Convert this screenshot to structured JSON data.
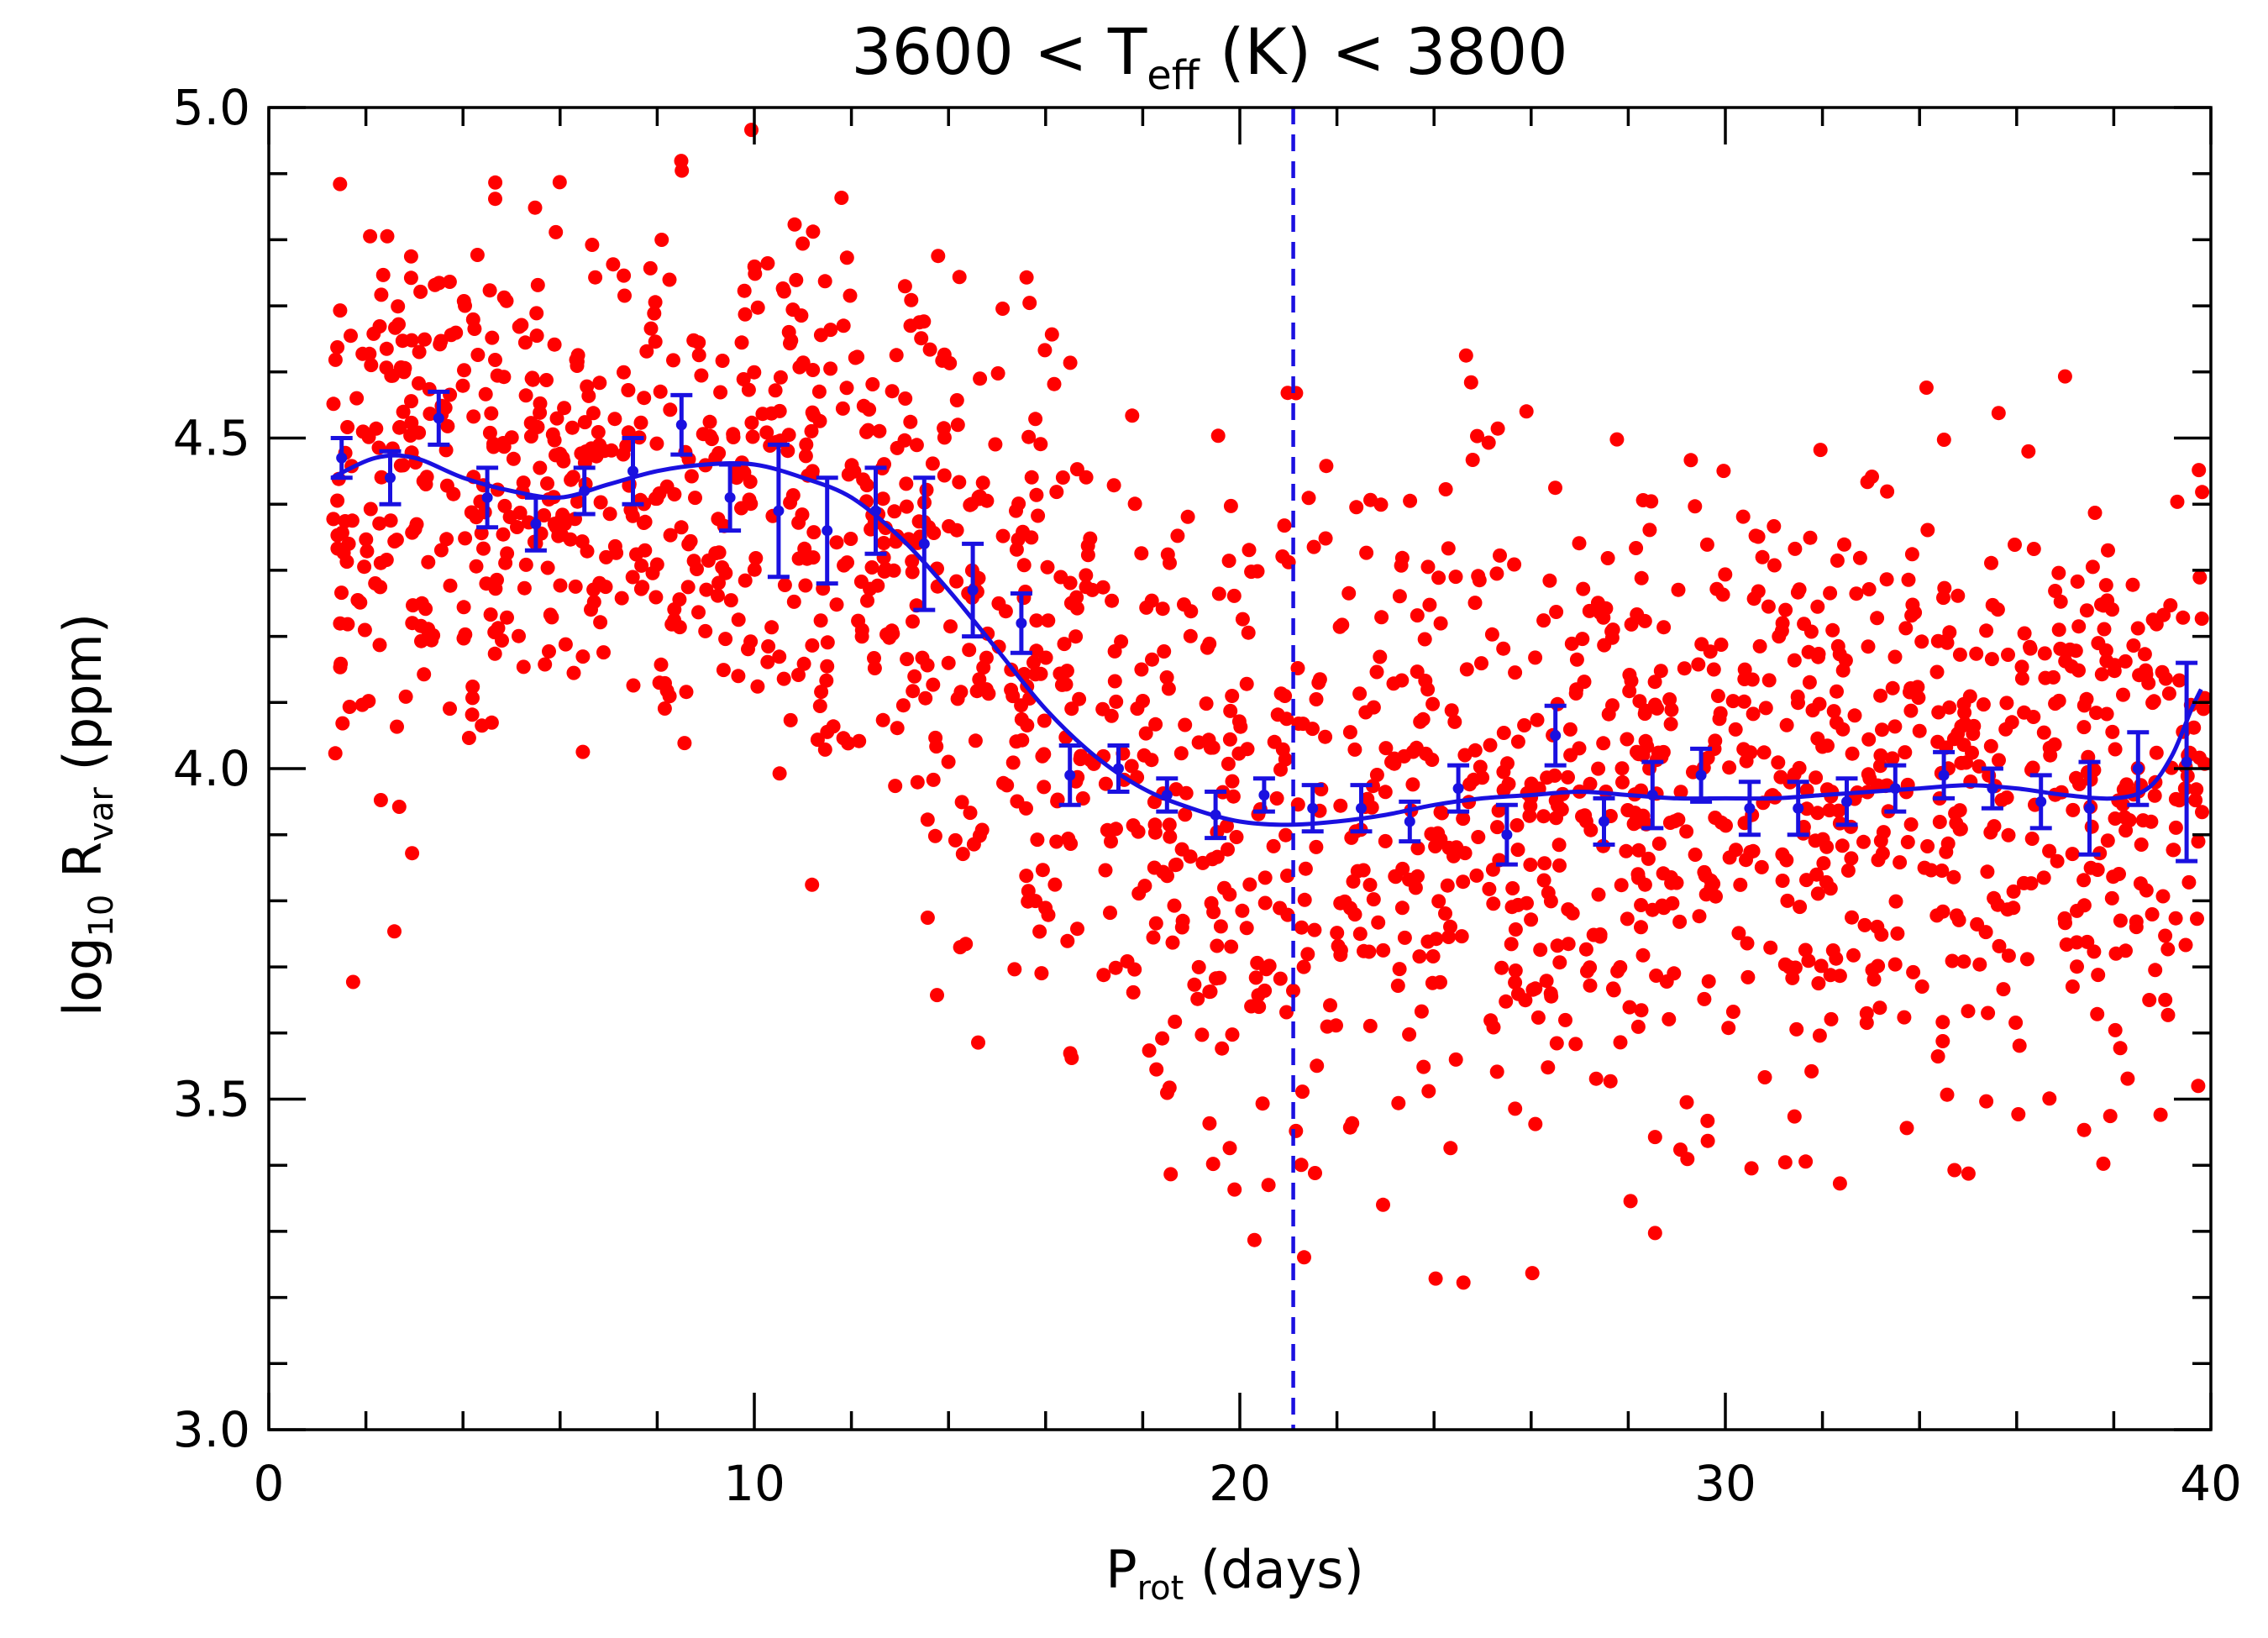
{
  "chart_data": {
    "type": "scatter",
    "title_parts": {
      "left": "3600 < T",
      "sub": "eff",
      "right": " (K) < 3800"
    },
    "xlabel_parts": {
      "main": "P",
      "sub": "rot",
      "rest": " (days)"
    },
    "ylabel_parts": {
      "pre": "log",
      "pre_sub": "10",
      "main": " R",
      "sub": "var",
      "rest": " (ppm)"
    },
    "xlim": [
      0,
      40
    ],
    "ylim": [
      3.0,
      5.0
    ],
    "x_ticks": [
      0,
      10,
      20,
      30,
      40
    ],
    "x_tick_labels": [
      "0",
      "10",
      "20",
      "30",
      "40"
    ],
    "y_ticks": [
      3.0,
      3.5,
      4.0,
      4.5,
      5.0
    ],
    "y_tick_labels": [
      "3.0",
      "3.5",
      "4.0",
      "4.5",
      "5.0"
    ],
    "vertical_line_x": 21.1,
    "colors": {
      "scatter": "#ff0000",
      "fit": "#1a10e0",
      "axes": "#000000"
    },
    "scatter_envelope": [
      [
        1.3,
        4.42,
        0.22
      ],
      [
        3.0,
        4.44,
        0.2
      ],
      [
        5.0,
        4.42,
        0.2
      ],
      [
        7.0,
        4.43,
        0.2
      ],
      [
        9.0,
        4.44,
        0.2
      ],
      [
        11.0,
        4.38,
        0.22
      ],
      [
        13.0,
        4.3,
        0.24
      ],
      [
        15.0,
        4.18,
        0.26
      ],
      [
        17.0,
        4.0,
        0.26
      ],
      [
        19.0,
        3.92,
        0.26
      ],
      [
        21.0,
        3.92,
        0.26
      ],
      [
        23.0,
        3.93,
        0.25
      ],
      [
        25.0,
        3.95,
        0.25
      ],
      [
        27.0,
        3.96,
        0.24
      ],
      [
        29.0,
        3.96,
        0.23
      ],
      [
        31.0,
        3.95,
        0.23
      ],
      [
        33.0,
        3.96,
        0.22
      ],
      [
        35.0,
        3.97,
        0.22
      ],
      [
        37.0,
        3.96,
        0.22
      ],
      [
        39.8,
        3.98,
        0.22
      ]
    ],
    "scatter_count": 1900,
    "binned_points": [
      {
        "x": 1.5,
        "y": 4.47,
        "err": 0.03
      },
      {
        "x": 2.5,
        "y": 4.44,
        "err": 0.04
      },
      {
        "x": 3.5,
        "y": 4.53,
        "err": 0.04
      },
      {
        "x": 4.5,
        "y": 4.41,
        "err": 0.045
      },
      {
        "x": 5.5,
        "y": 4.37,
        "err": 0.04
      },
      {
        "x": 6.5,
        "y": 4.42,
        "err": 0.035
      },
      {
        "x": 7.5,
        "y": 4.45,
        "err": 0.05
      },
      {
        "x": 8.5,
        "y": 4.52,
        "err": 0.045
      },
      {
        "x": 9.5,
        "y": 4.41,
        "err": 0.05
      },
      {
        "x": 10.5,
        "y": 4.39,
        "err": 0.1
      },
      {
        "x": 11.5,
        "y": 4.36,
        "err": 0.08
      },
      {
        "x": 12.5,
        "y": 4.39,
        "err": 0.065
      },
      {
        "x": 13.5,
        "y": 4.34,
        "err": 0.1
      },
      {
        "x": 14.5,
        "y": 4.27,
        "err": 0.07
      },
      {
        "x": 15.5,
        "y": 4.22,
        "err": 0.045
      },
      {
        "x": 16.5,
        "y": 3.99,
        "err": 0.045
      },
      {
        "x": 17.5,
        "y": 4.0,
        "err": 0.035
      },
      {
        "x": 18.5,
        "y": 3.96,
        "err": 0.025
      },
      {
        "x": 19.5,
        "y": 3.93,
        "err": 0.035
      },
      {
        "x": 20.5,
        "y": 3.96,
        "err": 0.025
      },
      {
        "x": 21.5,
        "y": 3.94,
        "err": 0.035
      },
      {
        "x": 22.5,
        "y": 3.94,
        "err": 0.035
      },
      {
        "x": 23.5,
        "y": 3.92,
        "err": 0.03
      },
      {
        "x": 24.5,
        "y": 3.97,
        "err": 0.035
      },
      {
        "x": 25.5,
        "y": 3.9,
        "err": 0.045
      },
      {
        "x": 26.5,
        "y": 4.05,
        "err": 0.045
      },
      {
        "x": 27.5,
        "y": 3.92,
        "err": 0.035
      },
      {
        "x": 28.5,
        "y": 3.96,
        "err": 0.05
      },
      {
        "x": 29.5,
        "y": 3.99,
        "err": 0.04
      },
      {
        "x": 30.5,
        "y": 3.94,
        "err": 0.04
      },
      {
        "x": 31.5,
        "y": 3.94,
        "err": 0.04
      },
      {
        "x": 32.5,
        "y": 3.95,
        "err": 0.035
      },
      {
        "x": 33.5,
        "y": 3.97,
        "err": 0.035
      },
      {
        "x": 34.5,
        "y": 3.99,
        "err": 0.035
      },
      {
        "x": 35.5,
        "y": 3.97,
        "err": 0.03
      },
      {
        "x": 36.5,
        "y": 3.95,
        "err": 0.04
      },
      {
        "x": 37.5,
        "y": 3.94,
        "err": 0.07
      },
      {
        "x": 38.5,
        "y": 4.0,
        "err": 0.055
      },
      {
        "x": 39.5,
        "y": 4.01,
        "err": 0.15
      }
    ],
    "fit_curve": [
      [
        1.3,
        4.44
      ],
      [
        2.2,
        4.47
      ],
      [
        3.0,
        4.47
      ],
      [
        4.0,
        4.44
      ],
      [
        5.0,
        4.42
      ],
      [
        6.0,
        4.41
      ],
      [
        7.0,
        4.43
      ],
      [
        8.0,
        4.45
      ],
      [
        9.0,
        4.46
      ],
      [
        10.0,
        4.46
      ],
      [
        11.0,
        4.44
      ],
      [
        12.0,
        4.41
      ],
      [
        13.0,
        4.35
      ],
      [
        14.0,
        4.27
      ],
      [
        15.0,
        4.18
      ],
      [
        16.0,
        4.09
      ],
      [
        17.0,
        4.02
      ],
      [
        18.0,
        3.97
      ],
      [
        19.0,
        3.94
      ],
      [
        20.0,
        3.92
      ],
      [
        21.0,
        3.915
      ],
      [
        22.0,
        3.92
      ],
      [
        23.0,
        3.93
      ],
      [
        24.0,
        3.945
      ],
      [
        25.0,
        3.955
      ],
      [
        26.0,
        3.96
      ],
      [
        27.0,
        3.965
      ],
      [
        28.0,
        3.96
      ],
      [
        29.0,
        3.955
      ],
      [
        30.0,
        3.955
      ],
      [
        31.0,
        3.955
      ],
      [
        32.0,
        3.96
      ],
      [
        33.0,
        3.965
      ],
      [
        34.0,
        3.97
      ],
      [
        35.0,
        3.975
      ],
      [
        36.0,
        3.97
      ],
      [
        37.0,
        3.96
      ],
      [
        38.0,
        3.955
      ],
      [
        38.7,
        3.97
      ],
      [
        39.2,
        4.02
      ],
      [
        39.6,
        4.09
      ],
      [
        39.8,
        4.12
      ]
    ]
  }
}
